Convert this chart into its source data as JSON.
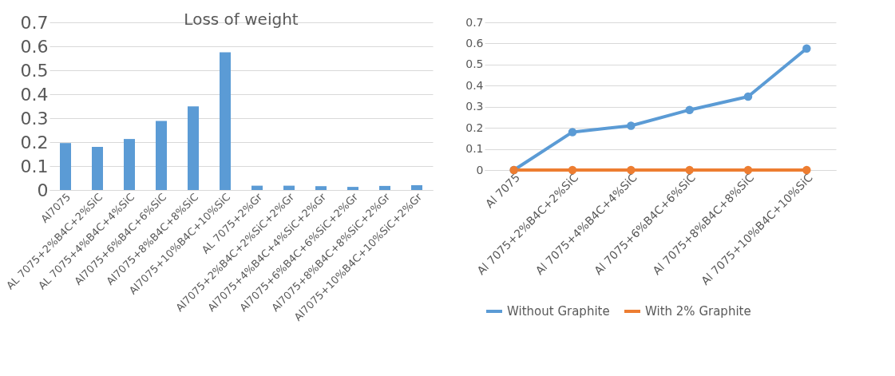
{
  "chart_data": [
    {
      "type": "bar",
      "title": "Loss of weight",
      "categories": [
        "Al7075",
        "AL 7075+2%B4C+2%SiC",
        "AL 7075+4%B4C+4%SiC",
        "Al7075+6%B4C+6%SiC",
        "Al7075+8%B4C+8%SiC",
        "Al7075+10%B4C+10%SiC",
        "AL 7075+2%Gr",
        "Al7075+2%B4C+2%SiC+2%Gr",
        "Al7075+4%B4C+4%SiC+2%Gr",
        "Al7075+6%B4C+6%SiC+2%Gr",
        "Al7075+8%B4C+8%SiC+2%Gr",
        "Al7075+10%B4C+10%SiC+2%Gr"
      ],
      "values": [
        0.196,
        0.18,
        0.213,
        0.288,
        0.349,
        0.575,
        0.018,
        0.018,
        0.016,
        0.013,
        0.017,
        0.02
      ],
      "color": "#5b9bd5",
      "ylim": [
        0,
        0.7
      ],
      "yticks": [
        0,
        0.1,
        0.2,
        0.3,
        0.4,
        0.5,
        0.6,
        0.7
      ],
      "grid": "y"
    },
    {
      "type": "line",
      "categories": [
        "Al 7075",
        "Al 7075+2%B4C+2%SiC",
        "Al 7075+4%B4C+4%SiC",
        "Al 7075+6%B4C+6%SiC",
        "Al 7075+8%B4C+8%SiC",
        "Al 7075+10%B4C+10%SiC"
      ],
      "series": [
        {
          "name": "Without Graphite",
          "color": "#5b9bd5",
          "values": [
            0,
            0.18,
            0.21,
            0.285,
            0.348,
            0.576
          ]
        },
        {
          "name": "With 2% Graphite",
          "color": "#ed7d31",
          "values": [
            0,
            0,
            0,
            0,
            0,
            0
          ]
        }
      ],
      "ylim": [
        0,
        0.7
      ],
      "yticks": [
        0,
        0.1,
        0.2,
        0.3,
        0.4,
        0.5,
        0.6,
        0.7
      ],
      "grid": "y",
      "legend": "bottom",
      "marker": "circle",
      "line_style": "solid"
    }
  ]
}
